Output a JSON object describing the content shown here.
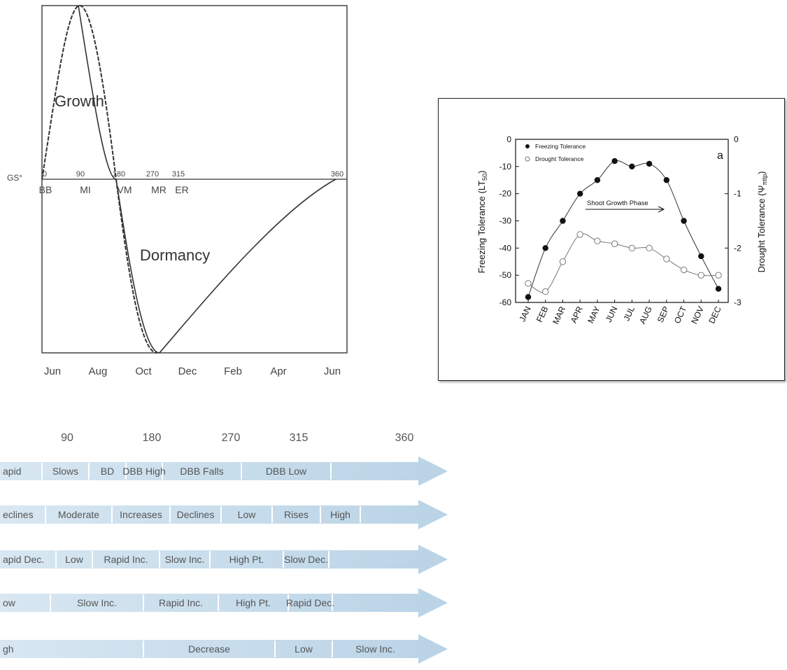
{
  "charts": {
    "growth": {
      "growth_label": "Growth",
      "dormancy_label": "Dormancy",
      "gs_label": "GS°",
      "degree_ticks": [
        "0",
        "90",
        "180",
        "270",
        "315",
        "360"
      ],
      "stage_labels": [
        "BB",
        "MI",
        "VM",
        "MR",
        "ER"
      ],
      "month_labels": [
        "Jun",
        "Aug",
        "Oct",
        "Dec",
        "Feb",
        "Apr",
        "Jun"
      ]
    },
    "tolerance": {
      "panel_label": "a",
      "ylabel_left": "Freezing Tolerance (LT50)",
      "ylabel_left_main": "Freezing Tolerance (LT",
      "ylabel_left_sub": "50",
      "ylabel_left_close": ")",
      "ylabel_right": "Drought Tolerance (Ψπtlp)",
      "ylabel_right_main": "Drought Tolerance (Ψ",
      "ylabel_right_sub": "πtlp",
      "ylabel_right_close": ")",
      "left_ticks": [
        "0",
        "-10",
        "-20",
        "-30",
        "-40",
        "-50",
        "-60"
      ],
      "right_ticks": [
        "0",
        "-1",
        "-2",
        "-3"
      ],
      "annotation": "Shoot Growth Phase",
      "legend": [
        "Freezing Tolerance",
        "Drought Tolerance"
      ]
    },
    "timeline": {
      "degree_ticks": [
        "90",
        "180",
        "270",
        "315",
        "360"
      ],
      "rows": [
        [
          "apid",
          "Slows",
          "BD",
          "DBB High",
          "DBB Falls",
          "DBB Low"
        ],
        [
          "eclines",
          "Moderate",
          "Increases",
          "Declines",
          "Low",
          "Rises",
          "High"
        ],
        [
          "apid Dec.",
          "Low",
          "Rapid Inc.",
          "Slow Inc.",
          "High Pt.",
          "Slow Dec."
        ],
        [
          "ow",
          "Slow Inc.",
          "Rapid Inc.",
          "High Pt.",
          "Rapid Dec."
        ],
        [
          "gh",
          "Decrease",
          "Low",
          "Slow Inc."
        ]
      ]
    }
  },
  "chart_data": [
    {
      "type": "line",
      "x": [
        0,
        90,
        180,
        270,
        315,
        360
      ],
      "x_tick_labels": [
        "Jun",
        "Aug",
        "Oct",
        "Dec",
        "Feb",
        "Apr",
        "Jun"
      ],
      "series": [
        {
          "name": "Growth",
          "x": [
            0,
            90,
            180
          ],
          "y": [
            0,
            1,
            0
          ]
        },
        {
          "name": "Dormancy",
          "x": [
            90,
            180,
            360
          ],
          "y": [
            0,
            -1,
            0
          ]
        }
      ],
      "grid": false
    },
    {
      "type": "line",
      "categories": [
        "JAN",
        "FEB",
        "MAR",
        "APR",
        "MAY",
        "JUN",
        "JUL",
        "AUG",
        "SEP",
        "OCT",
        "NOV",
        "DEC"
      ],
      "series": [
        {
          "name": "Freezing Tolerance",
          "axis": "left",
          "values": [
            -58,
            -40,
            -30,
            -20,
            -15,
            -8,
            -10,
            -9,
            -15,
            -30,
            -43,
            -55
          ]
        },
        {
          "name": "Drought Tolerance",
          "axis": "right",
          "values": [
            -2.65,
            -2.8,
            -2.25,
            -1.75,
            -1.87,
            -1.92,
            -2.0,
            -2.0,
            -2.2,
            -2.4,
            -2.5,
            -2.5
          ]
        }
      ],
      "ylabel": "Freezing Tolerance (LT50)",
      "ylabel_right": "Drought Tolerance (Ψπtlp)",
      "ylim": [
        -60,
        0
      ],
      "ylim_right": [
        -3,
        0
      ],
      "legend": "top-left",
      "grid": false
    }
  ]
}
